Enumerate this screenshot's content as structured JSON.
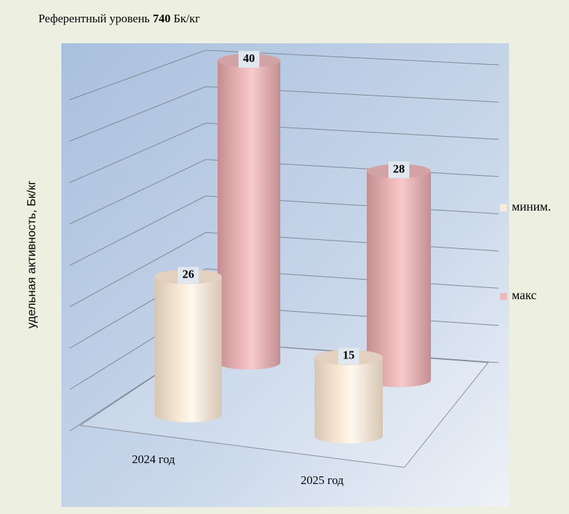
{
  "chart_data": {
    "type": "bar3d",
    "title": {
      "prefix": "Референтный уровень",
      "value": 740,
      "unit": "Бк/кг"
    },
    "y_label": "удельная активность,  Бк/кг",
    "categories": [
      "2024 год",
      "2025 год"
    ],
    "series": [
      {
        "name": "миним.",
        "color": "#fbecd9",
        "values": [
          26,
          15
        ]
      },
      {
        "name": "макс",
        "color": "#efb9bb",
        "values": [
          40,
          28
        ]
      }
    ],
    "ylim": [
      0,
      40
    ],
    "yticks": [
      0,
      5,
      10,
      15,
      20,
      25,
      30,
      35,
      40
    ],
    "grid": true,
    "legend": "right"
  }
}
